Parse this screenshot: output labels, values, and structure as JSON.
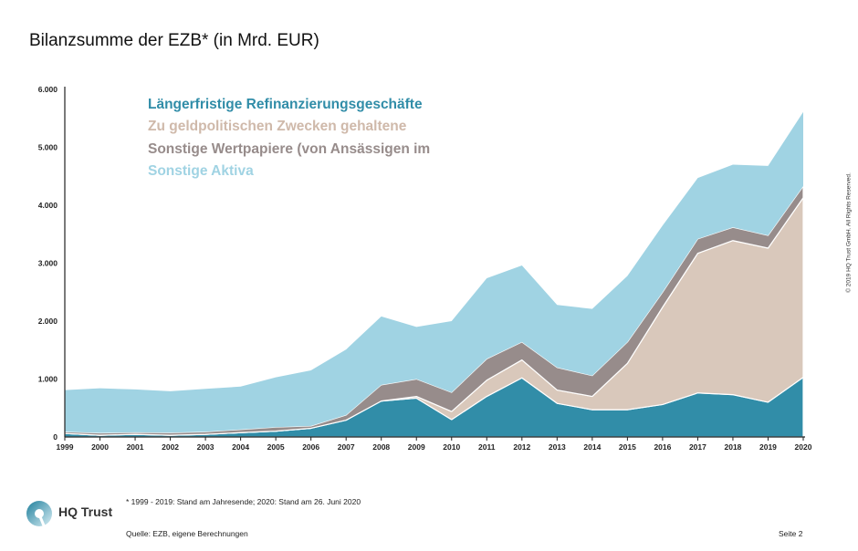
{
  "title": "Bilanzsumme der EZB* (in Mrd. EUR)",
  "footnote": "*  1999 - 2019: Stand am Jahresende; 2020: Stand am 26. Juni 2020",
  "source": "Quelle: EZB, eigene Berechnungen",
  "page_label": "Seite 2",
  "copyright": "© 2019 HQ Trust GmbH. All Rights Reserved.",
  "logo": {
    "text": "HQ Trust"
  },
  "chart_data": {
    "type": "area",
    "stacked": true,
    "title": "Bilanzsumme der EZB* (in Mrd. EUR)",
    "xlabel": "",
    "ylabel": "",
    "ylim": [
      0,
      6000
    ],
    "yticks": [
      "0",
      "1.000",
      "2.000",
      "3.000",
      "4.000",
      "5.000",
      "6.000"
    ],
    "ytick_values": [
      0,
      1000,
      2000,
      3000,
      4000,
      5000,
      6000
    ],
    "grid": false,
    "legend_position": "top-left",
    "categories": [
      "1999",
      "2000",
      "2001",
      "2002",
      "2003",
      "2004",
      "2005",
      "2006",
      "2007",
      "2008",
      "2009",
      "2010",
      "2011",
      "2012",
      "2013",
      "2014",
      "2015",
      "2016",
      "2017",
      "2018",
      "2019",
      "2020"
    ],
    "series": [
      {
        "name": "Längerfristige Refinanzierungsgeschäfte",
        "color": "#318da8",
        "values": [
          60,
          30,
          45,
          30,
          45,
          75,
          100,
          150,
          290,
          620,
          670,
          300,
          700,
          1020,
          580,
          470,
          470,
          560,
          760,
          730,
          600,
          1030
        ]
      },
      {
        "name": "Zu geldpolitischen Zwecken gehaltene",
        "color": "#d9c8bb",
        "values": [
          0,
          0,
          0,
          0,
          0,
          0,
          0,
          0,
          0,
          0,
          30,
          140,
          280,
          310,
          230,
          230,
          800,
          1680,
          2410,
          2660,
          2660,
          3100
        ]
      },
      {
        "name": "Sonstige Wertpapiere (von Ansässigen im",
        "color": "#978c8b",
        "values": [
          30,
          40,
          35,
          45,
          45,
          55,
          70,
          40,
          90,
          280,
          300,
          330,
          370,
          310,
          390,
          360,
          370,
          260,
          250,
          230,
          220,
          200
        ]
      },
      {
        "name": "Sonstige Aktiva",
        "color": "#a0d3e3",
        "values": [
          720,
          770,
          740,
          715,
          740,
          740,
          860,
          960,
          1130,
          1180,
          900,
          1230,
          1390,
          1320,
          1080,
          1150,
          1140,
          1150,
          1050,
          1080,
          1200,
          1280
        ]
      }
    ]
  }
}
